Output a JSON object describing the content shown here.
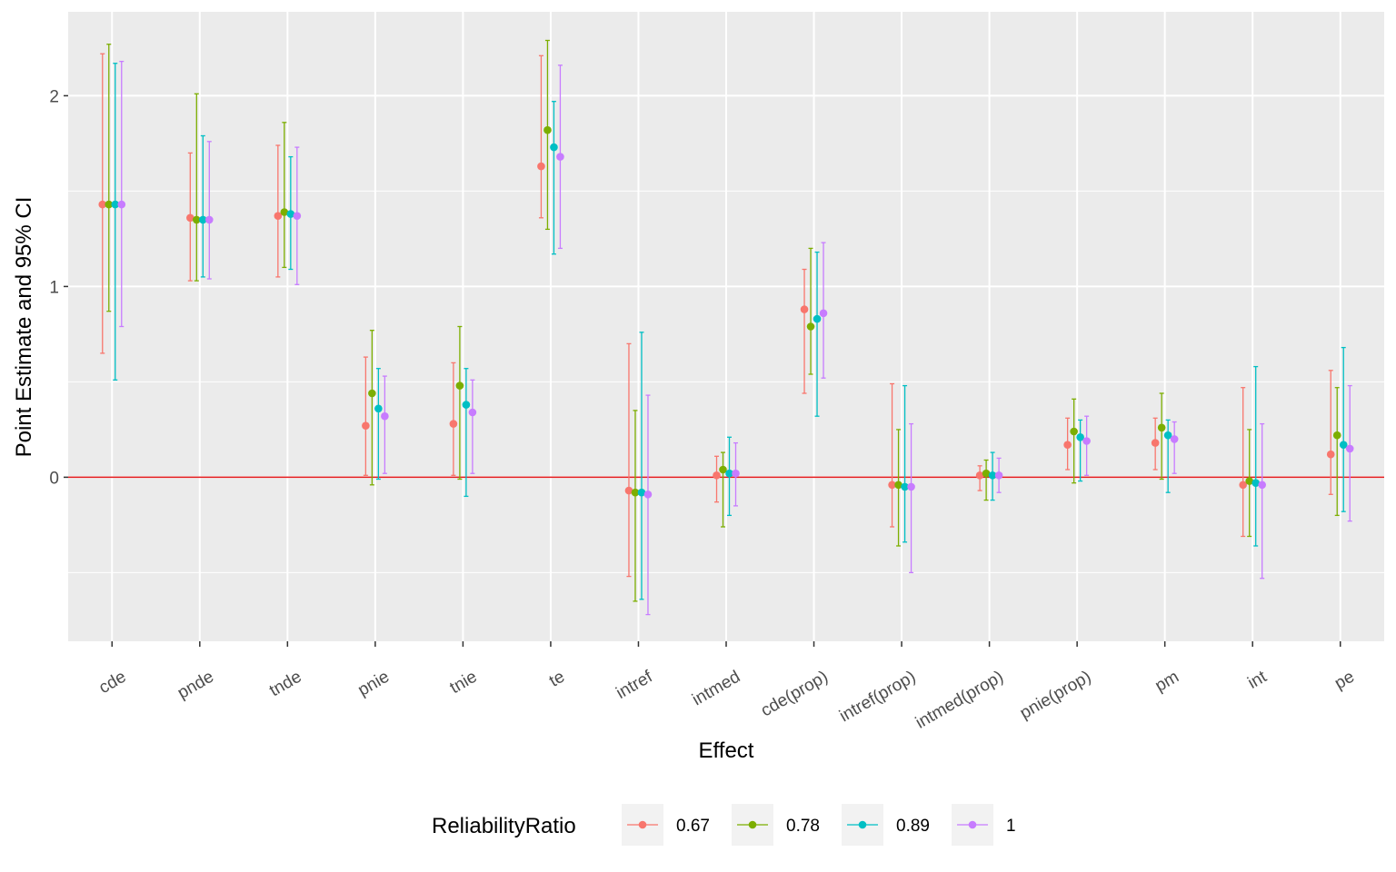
{
  "chart_data": {
    "type": "scatter",
    "subtype": "point-range with error bars",
    "title": "",
    "xlabel": "Effect",
    "ylabel": "Point Estimate and 95% CI",
    "ylim": [
      -0.86,
      2.44
    ],
    "y_ticks": [
      0,
      1,
      2
    ],
    "grid": true,
    "reference_line": {
      "y": 0,
      "color": "#E41A1C"
    },
    "legend": {
      "title": "ReliabilityRatio",
      "position": "bottom"
    },
    "categories": [
      "cde",
      "pnde",
      "tnde",
      "pnie",
      "tnie",
      "te",
      "intref",
      "intmed",
      "cde(prop)",
      "intref(prop)",
      "intmed(prop)",
      "pnie(prop)",
      "pm",
      "int",
      "pe"
    ],
    "series": [
      {
        "name": "0.67",
        "color": "#F8766D",
        "estimate": [
          1.43,
          1.36,
          1.37,
          0.27,
          0.28,
          1.63,
          -0.07,
          0.01,
          0.88,
          -0.04,
          0.01,
          0.17,
          0.18,
          -0.04,
          0.12
        ],
        "lower": [
          0.65,
          1.03,
          1.05,
          0.01,
          0.01,
          1.36,
          -0.52,
          -0.13,
          0.44,
          -0.26,
          -0.07,
          0.04,
          0.04,
          -0.31,
          -0.09
        ],
        "upper": [
          2.22,
          1.7,
          1.74,
          0.63,
          0.6,
          2.21,
          0.7,
          0.11,
          1.09,
          0.49,
          0.06,
          0.31,
          0.31,
          0.47,
          0.56
        ]
      },
      {
        "name": "0.78",
        "color": "#7CAE00",
        "estimate": [
          1.43,
          1.35,
          1.39,
          0.44,
          0.48,
          1.82,
          -0.08,
          0.04,
          0.79,
          -0.04,
          0.02,
          0.24,
          0.26,
          -0.02,
          0.22
        ],
        "lower": [
          0.87,
          1.03,
          1.1,
          -0.04,
          -0.01,
          1.3,
          -0.65,
          -0.26,
          0.54,
          -0.36,
          -0.12,
          -0.03,
          -0.01,
          -0.31,
          -0.2
        ],
        "upper": [
          2.27,
          2.01,
          1.86,
          0.77,
          0.79,
          2.29,
          0.35,
          0.13,
          1.2,
          0.25,
          0.09,
          0.41,
          0.44,
          0.25,
          0.47
        ]
      },
      {
        "name": "0.89",
        "color": "#00BFC4",
        "estimate": [
          1.43,
          1.35,
          1.38,
          0.36,
          0.38,
          1.73,
          -0.08,
          0.02,
          0.83,
          -0.05,
          0.01,
          0.21,
          0.22,
          -0.03,
          0.17
        ],
        "lower": [
          0.51,
          1.05,
          1.09,
          -0.01,
          -0.1,
          1.17,
          -0.64,
          -0.2,
          0.32,
          -0.34,
          -0.12,
          -0.02,
          -0.08,
          -0.36,
          -0.18
        ],
        "upper": [
          2.17,
          1.79,
          1.68,
          0.57,
          0.57,
          1.97,
          0.76,
          0.21,
          1.18,
          0.48,
          0.13,
          0.3,
          0.3,
          0.58,
          0.68
        ]
      },
      {
        "name": "1",
        "color": "#C77CFF",
        "estimate": [
          1.43,
          1.35,
          1.37,
          0.32,
          0.34,
          1.68,
          -0.09,
          0.02,
          0.86,
          -0.05,
          0.01,
          0.19,
          0.2,
          -0.04,
          0.15
        ],
        "lower": [
          0.79,
          1.04,
          1.01,
          0.02,
          0.02,
          1.2,
          -0.72,
          -0.15,
          0.52,
          -0.5,
          -0.08,
          0.01,
          0.02,
          -0.53,
          -0.23
        ],
        "upper": [
          2.18,
          1.76,
          1.73,
          0.53,
          0.51,
          2.16,
          0.43,
          0.18,
          1.23,
          0.28,
          0.1,
          0.32,
          0.29,
          0.28,
          0.48
        ]
      }
    ]
  }
}
